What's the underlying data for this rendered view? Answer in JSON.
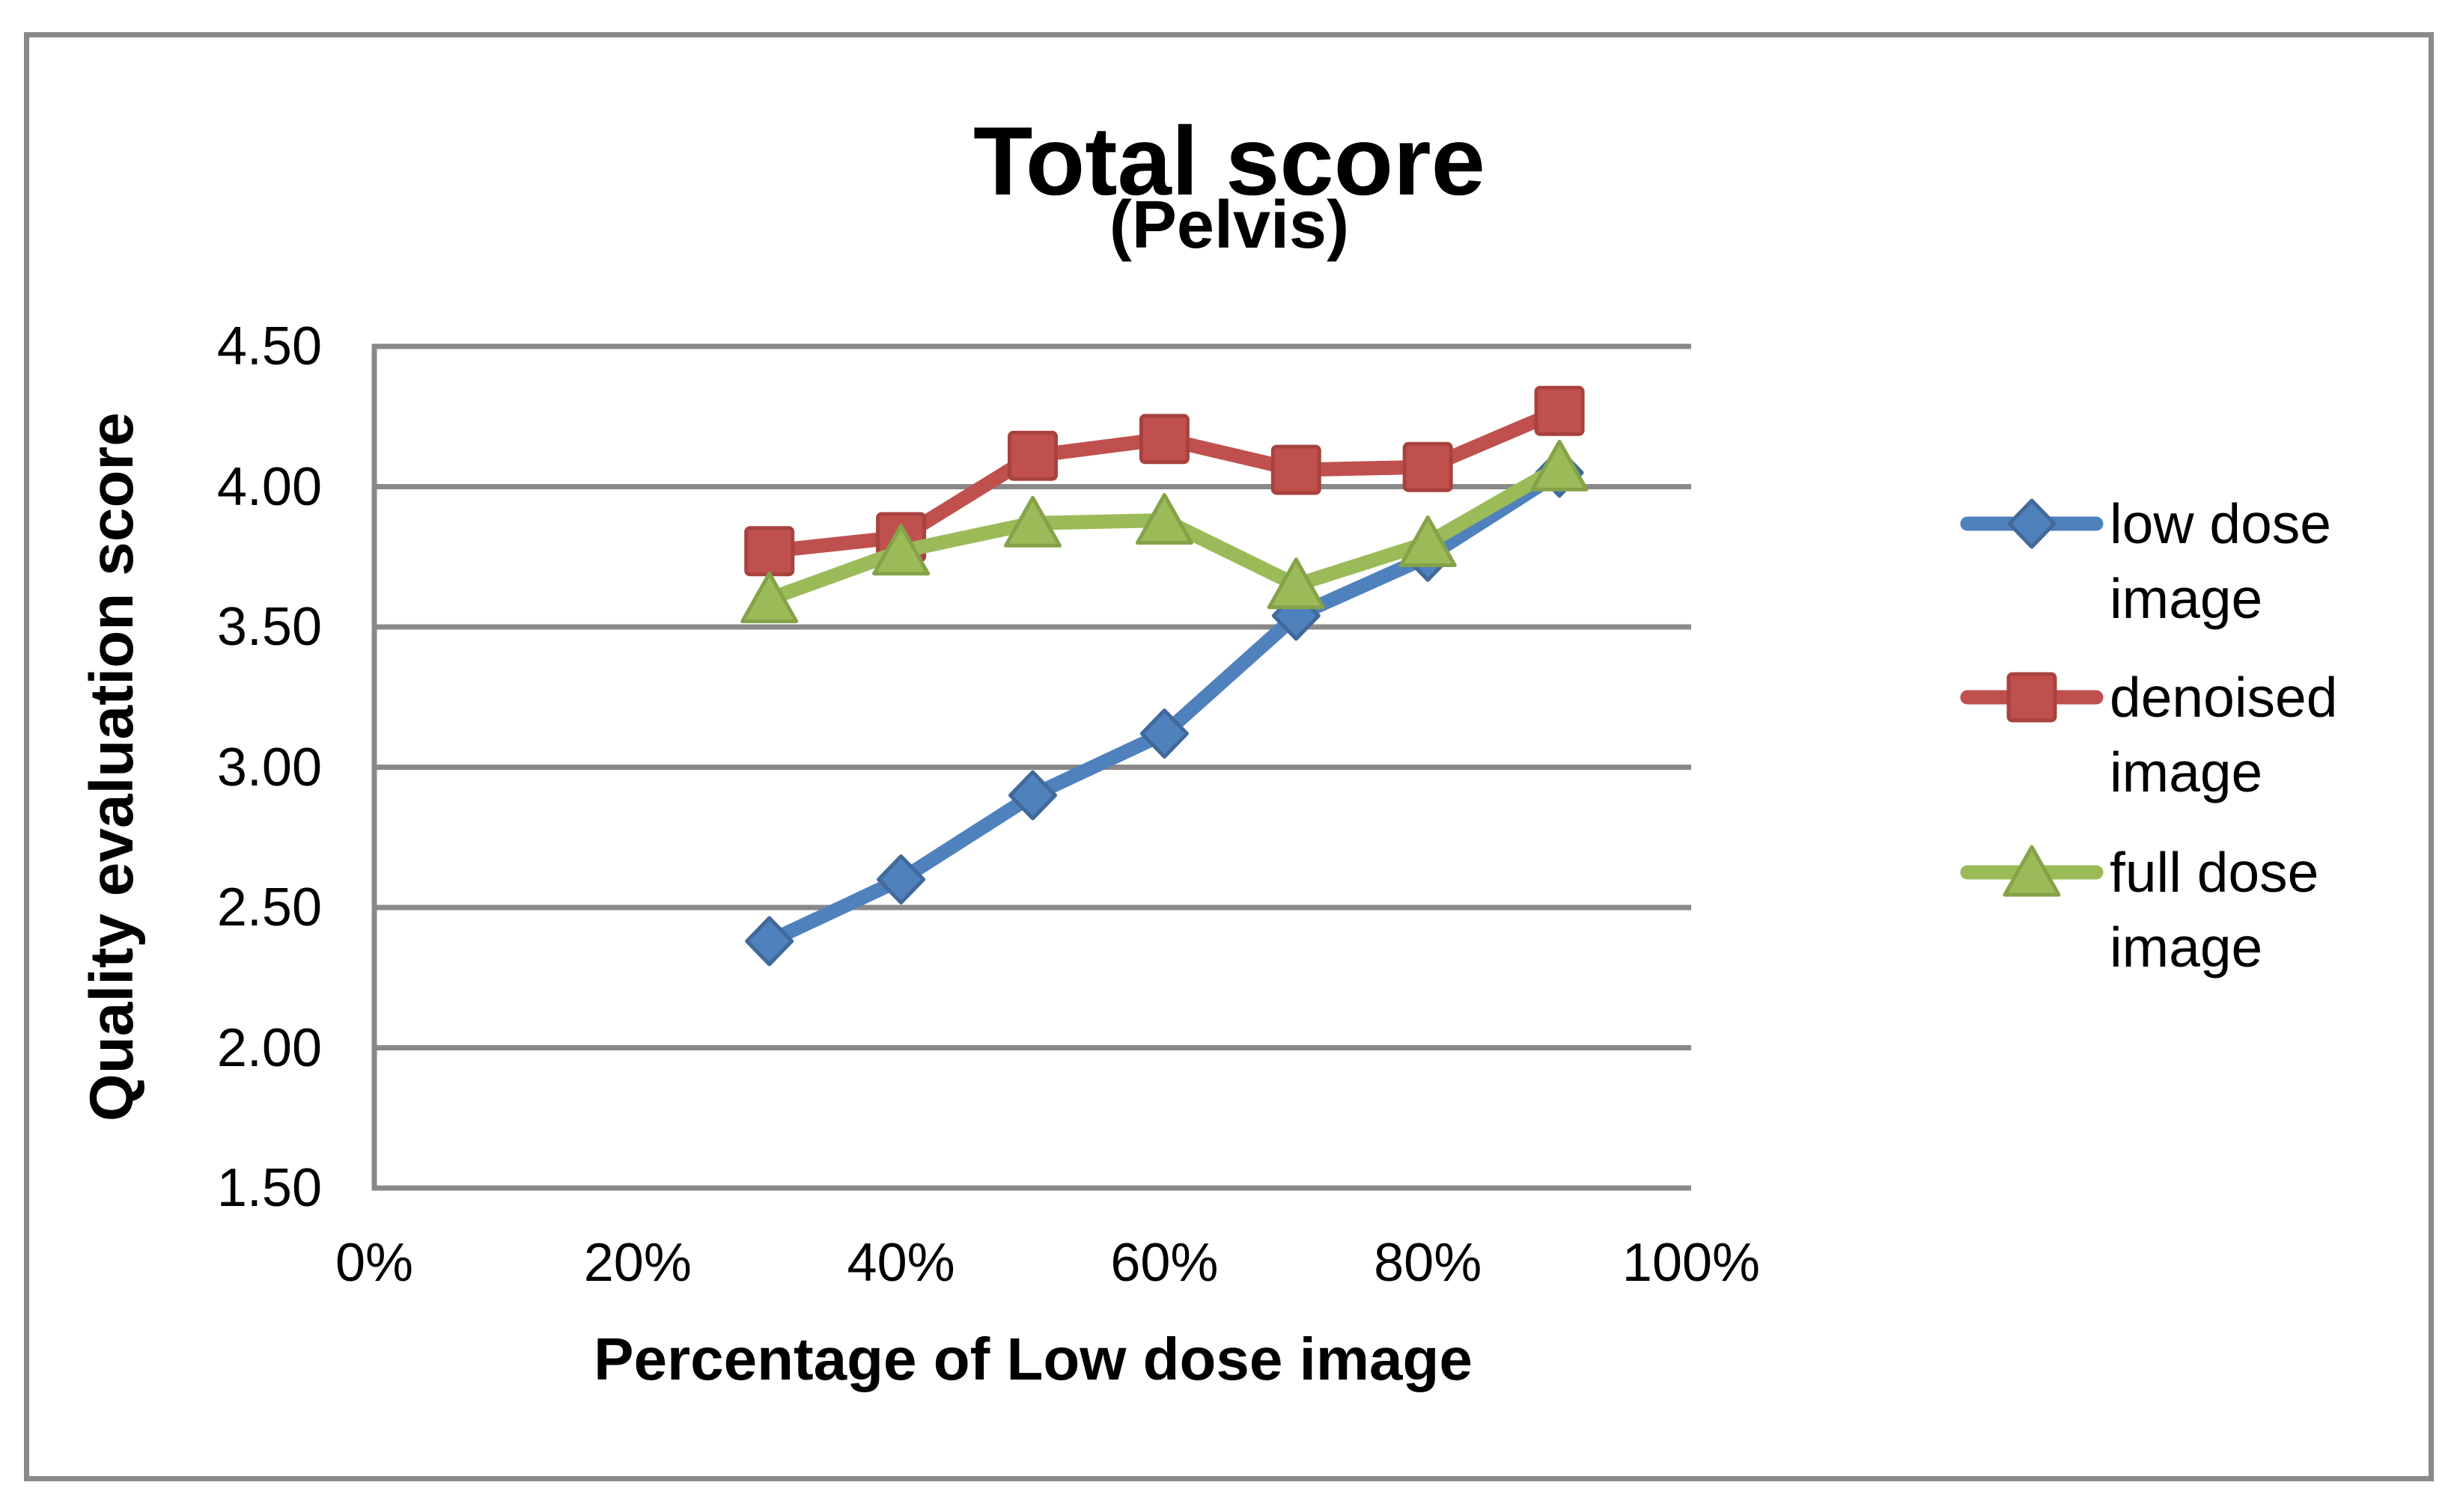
{
  "chart_data": {
    "type": "line",
    "title": "Total score",
    "subtitle": "(Pelvis)",
    "xlabel": "Percentage of Low dose image",
    "ylabel": "Quality evaluation score",
    "xlim": [
      0,
      100
    ],
    "ylim": [
      1.5,
      4.5
    ],
    "grid": "horizontal",
    "legend_position": "right",
    "x_ticks": [
      "0%",
      "20%",
      "40%",
      "60%",
      "80%",
      "100%"
    ],
    "x_tick_values": [
      0,
      20,
      40,
      60,
      80,
      100
    ],
    "y_ticks": [
      "4.50",
      "4.00",
      "3.50",
      "3.00",
      "2.50",
      "2.00",
      "1.50"
    ],
    "y_tick_values": [
      4.5,
      4.0,
      3.5,
      3.0,
      2.5,
      2.0,
      1.5
    ],
    "x": [
      30,
      40,
      50,
      60,
      70,
      80,
      90
    ],
    "series": [
      {
        "name": "low dose image",
        "marker": "diamond",
        "color": "#4F81BD",
        "edge_color": "#41699A",
        "values": [
          2.38,
          2.6,
          2.9,
          3.12,
          3.54,
          3.75,
          4.05
        ]
      },
      {
        "name": "denoised image",
        "marker": "square",
        "color": "#C0504D",
        "edge_color": "#A8423F",
        "values": [
          3.77,
          3.82,
          4.11,
          4.17,
          4.06,
          4.07,
          4.27
        ]
      },
      {
        "name": "full dose image",
        "marker": "triangle",
        "color": "#9BBB59",
        "edge_color": "#84A348",
        "values": [
          3.6,
          3.77,
          3.87,
          3.88,
          3.65,
          3.8,
          4.07
        ]
      }
    ]
  },
  "colors": {
    "background": "#FFFFFF",
    "grid": "#898989",
    "axis": "#898989",
    "frame": "#898989",
    "text": "#000000"
  }
}
